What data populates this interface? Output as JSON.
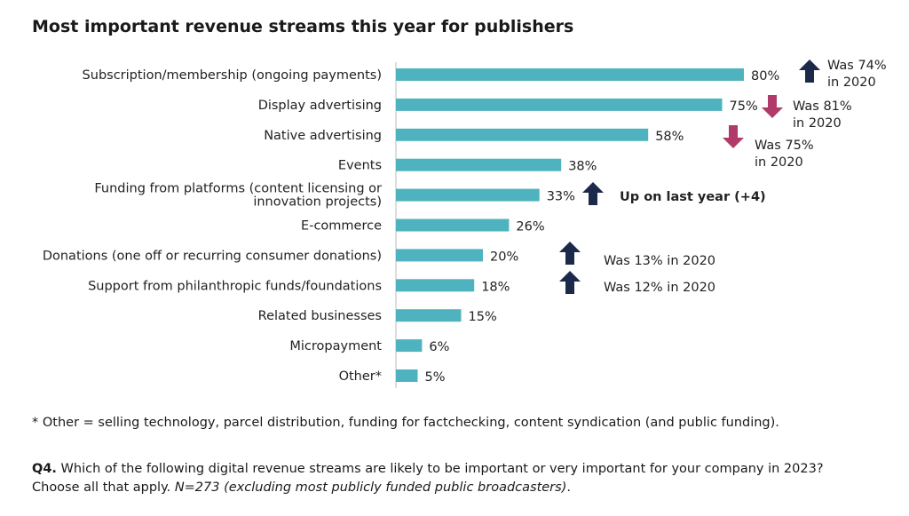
{
  "title": "Most important revenue streams this year for publishers",
  "chart_data": {
    "type": "bar",
    "orientation": "horizontal",
    "title": "Most important revenue streams this year for publishers",
    "categories": [
      [
        "Subscription/membership (ongoing payments)"
      ],
      [
        "Display advertising"
      ],
      [
        "Native advertising"
      ],
      [
        "Events"
      ],
      [
        "Funding from platforms (content licensing or",
        "innovation projects)"
      ],
      [
        "E-commerce"
      ],
      [
        "Donations (one off or recurring consumer donations)"
      ],
      [
        "Support from philanthropic funds/foundations"
      ],
      [
        "Related businesses"
      ],
      [
        "Micropayment"
      ],
      [
        "Other*"
      ]
    ],
    "values": [
      80,
      75,
      58,
      38,
      33,
      26,
      20,
      18,
      15,
      6,
      5
    ],
    "value_labels": [
      "80%",
      "75%",
      "58%",
      "38%",
      "33%",
      "26%",
      "20%",
      "18%",
      "15%",
      "6%",
      "5%"
    ],
    "xlim": [
      0,
      100
    ],
    "bar_color": "#4fb3bf",
    "annotations": [
      {
        "row": 0,
        "direction": "up",
        "lines": [
          "Was 74%",
          "in 2020"
        ]
      },
      {
        "row": 1,
        "direction": "down",
        "lines": [
          "Was 81%",
          "in 2020"
        ]
      },
      {
        "row": 2,
        "direction": "down",
        "lines": [
          "Was 75%",
          "in 2020"
        ]
      },
      {
        "row": 4,
        "direction": "up",
        "lines": [
          "Up on last year (+4)"
        ],
        "bold": true
      },
      {
        "row": 6,
        "direction": "up",
        "lines": [
          "Was 13% in 2020"
        ]
      },
      {
        "row": 7,
        "direction": "up",
        "lines": [
          "Was 12% in 2020"
        ]
      }
    ],
    "up_color": "#1b2a4a",
    "down_color": "#b03a6a"
  },
  "footnote": "* Other = selling technology, parcel distribution, funding for factchecking, content syndication (and public funding).",
  "question": {
    "label": "Q4.",
    "text": " Which of the following digital revenue streams are likely to be important or very important for your company in 2023?",
    "line2": "Choose all that apply. ",
    "sample": "N=273 (excluding most publicly funded public broadcasters)",
    "end": "."
  }
}
